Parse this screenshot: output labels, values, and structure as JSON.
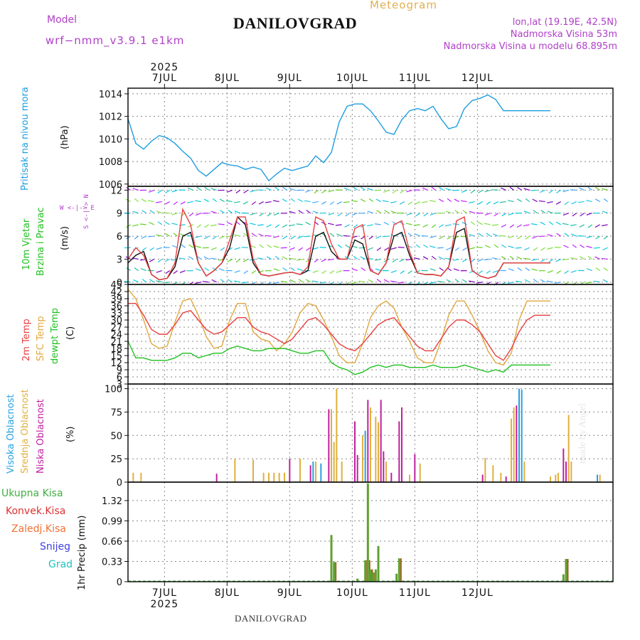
{
  "header": {
    "title": "DANILOVGRAD",
    "subtitle": "Meteogram",
    "model_label": "Model",
    "model_name": "wrf−nmm_v3.9.1  e1km",
    "info_lonlat": "lon,lat (19.19E, 42.5N)",
    "info_elev": "Nadmorska Visina 53m",
    "info_model_elev": "Nadmorska Visina u modelu 68.895m"
  },
  "footer": "DANILOVGRAD",
  "watermark": "made by Angel",
  "time_axis": {
    "year": "2025",
    "day_labels": [
      "7JUL",
      "8JUL",
      "9JUL",
      "10JUL",
      "11JUL",
      "12JUL"
    ],
    "start_hour_offset": 0
  },
  "colors": {
    "pressure": "#1e9ee0",
    "temp_2m": "#e84040",
    "temp_sfc": "#e0a840",
    "dewpoint": "#20c020",
    "high_cloud": "#28a0e0",
    "mid_cloud": "#e0b040",
    "low_cloud": "#c020a0",
    "total_precip": "#40b040",
    "conv_precip": "#e03030",
    "frozen_precip": "#f07030",
    "snow": "#4040e0",
    "graupel": "#20c0c0",
    "wind_dir_label": "#b040c8"
  },
  "panels": {
    "pressure": {
      "ylabel": "Pritisak na nivou mora",
      "unit": "(hPa)"
    },
    "wind": {
      "ylabel1": "10m Vjetar",
      "ylabel2": "Brzina i Pravac",
      "unit": "(m/s)",
      "compass": "W <-|-> E",
      "compass2": "S <-|-> N"
    },
    "temp": {
      "ylabel1": "2m Temp",
      "ylabel2": "SFC Temp",
      "ylabel3": "dewpt Temp",
      "unit": "(C)"
    },
    "cloud": {
      "ylabel1": "Visoka Oblacnost",
      "ylabel2": "Srednja Oblacnost",
      "ylabel3": "Niska Oblacnost",
      "unit": "(%)"
    },
    "precip": {
      "legend": [
        "Ukupna Kisa",
        "Konvek.Kisa",
        "Zaledj.Kisa",
        "Snijeg",
        "Grad"
      ],
      "unit": "1hr Precip (mm)"
    }
  },
  "chart_data": [
    {
      "type": "line",
      "title": "",
      "ylabel": "Pritisak na nivou mora (hPa)",
      "ylim": [
        1005.8,
        1014.5
      ],
      "yticks": [
        1006,
        1008,
        1010,
        1012,
        1014
      ],
      "x_hours": [
        0,
        3,
        6,
        9,
        12,
        15,
        18,
        21,
        24,
        27,
        30,
        33,
        36,
        39,
        42,
        45,
        48,
        51,
        54,
        57,
        60,
        63,
        66,
        69,
        72,
        75,
        78,
        81,
        84,
        87,
        90,
        93,
        96,
        99,
        102,
        105,
        108,
        111,
        114,
        117,
        120,
        123,
        126,
        129,
        132,
        135,
        138,
        141,
        144,
        147,
        150,
        153,
        156,
        159,
        162
      ],
      "series": [
        {
          "name": "pressure",
          "values": [
            1011.8,
            1009.6,
            1009.1,
            1009.8,
            1010.3,
            1010.1,
            1009.6,
            1008.9,
            1008.3,
            1007.2,
            1006.7,
            1007.3,
            1007.9,
            1007.7,
            1007.6,
            1007.3,
            1007.5,
            1007.3,
            1006.3,
            1006.9,
            1007.4,
            1007.2,
            1007.4,
            1007.6,
            1008.5,
            1007.9,
            1008.8,
            1011.5,
            1012.9,
            1013.1,
            1013.1,
            1012.5,
            1011.6,
            1010.6,
            1010.4,
            1011.7,
            1012.5,
            1012.7,
            1012.5,
            1012.9,
            1011.8,
            1010.9,
            1011.1,
            1012.7,
            1013.4,
            1013.6,
            1013.9,
            1013.5,
            1012.5,
            1012.5,
            1012.5,
            1012.5,
            1012.5,
            1012.5,
            1012.5
          ]
        }
      ]
    },
    {
      "type": "line",
      "title": "",
      "ylabel": "10m Vjetar Brzina i Pravac (m/s)",
      "ylim": [
        -0.3,
        12.5
      ],
      "yticks": [
        0,
        3,
        6,
        9,
        12
      ],
      "x_hours": [
        0,
        3,
        6,
        9,
        12,
        15,
        18,
        21,
        24,
        27,
        30,
        33,
        36,
        39,
        42,
        45,
        48,
        51,
        54,
        57,
        60,
        63,
        66,
        69,
        72,
        75,
        78,
        81,
        84,
        87,
        90,
        93,
        96,
        99,
        102,
        105,
        108,
        111,
        114,
        117,
        120,
        123,
        126,
        129,
        132,
        135,
        138,
        141,
        144,
        147,
        150,
        153,
        156,
        159,
        162
      ],
      "series": [
        {
          "name": "speed",
          "values": [
            2.5,
            3.5,
            4.0,
            1.0,
            0.3,
            0.5,
            2.0,
            6.0,
            6.5,
            2.5,
            0.8,
            1.5,
            2.5,
            4.5,
            8.5,
            7.5,
            2.5,
            1.0,
            0.8,
            1.0,
            1.2,
            1.3,
            1.0,
            1.5,
            6.0,
            6.5,
            4.0,
            3.0,
            3.0,
            5.5,
            5.0,
            1.5,
            1.0,
            2.5,
            6.0,
            6.5,
            3.5,
            1.2,
            1.0,
            1.0,
            0.8,
            2.0,
            6.5,
            7.0,
            1.5,
            0.8,
            0.5,
            0.8,
            2.5,
            2.5,
            2.5,
            2.5,
            2.5,
            2.5,
            2.5
          ]
        },
        {
          "name": "gust",
          "values": [
            3.0,
            4.5,
            3.5,
            1.0,
            0.3,
            0.5,
            2.5,
            9.5,
            7.5,
            2.5,
            0.8,
            1.5,
            2.5,
            5.5,
            8.5,
            8.5,
            3.0,
            1.0,
            0.8,
            1.0,
            1.2,
            1.3,
            1.0,
            2.0,
            8.5,
            8.0,
            5.0,
            3.0,
            3.0,
            7.0,
            7.5,
            1.5,
            1.0,
            2.5,
            7.5,
            8.0,
            4.0,
            1.2,
            1.0,
            1.0,
            0.8,
            2.0,
            8.0,
            8.5,
            1.5,
            0.8,
            0.5,
            0.8,
            2.5,
            2.5,
            2.5,
            2.5,
            2.5,
            2.5,
            2.5
          ]
        }
      ]
    },
    {
      "type": "line",
      "title": "",
      "ylabel": "2m Temp / SFC Temp / dewpt Temp (C)",
      "ylim": [
        3,
        45
      ],
      "yticks": [
        3,
        6,
        9,
        12,
        15,
        18,
        21,
        24,
        27,
        30,
        33,
        36,
        39,
        42,
        45
      ],
      "x_hours": [
        0,
        3,
        6,
        9,
        12,
        15,
        18,
        21,
        24,
        27,
        30,
        33,
        36,
        39,
        42,
        45,
        48,
        51,
        54,
        57,
        60,
        63,
        66,
        69,
        72,
        75,
        78,
        81,
        84,
        87,
        90,
        93,
        96,
        99,
        102,
        105,
        108,
        111,
        114,
        117,
        120,
        123,
        126,
        129,
        132,
        135,
        138,
        141,
        144,
        147,
        150,
        153,
        156,
        159,
        162
      ],
      "series": [
        {
          "name": "2m Temp",
          "values": [
            37,
            37,
            32,
            26,
            24,
            24,
            28,
            33,
            34,
            30,
            26,
            24,
            25,
            28,
            31,
            31,
            27,
            25,
            24,
            22,
            20,
            22,
            26,
            30,
            31,
            28,
            24,
            20,
            18,
            17,
            20,
            24,
            28,
            30,
            31,
            27,
            23,
            19,
            17,
            17,
            22,
            27,
            30,
            30,
            28,
            25,
            20,
            15,
            13,
            18,
            25,
            30,
            32,
            32,
            32
          ]
        },
        {
          "name": "SFC Temp",
          "values": [
            43,
            39,
            30,
            20,
            18,
            19,
            29,
            38,
            39,
            32,
            23,
            18,
            19,
            30,
            37,
            37,
            25,
            22,
            21,
            17,
            20,
            25,
            33,
            37,
            36,
            30,
            23,
            15,
            12,
            12,
            20,
            31,
            36,
            38,
            35,
            27,
            21,
            14,
            12,
            12,
            21,
            32,
            38,
            38,
            32,
            25,
            17,
            12,
            11,
            16,
            30,
            38,
            38,
            38,
            38
          ]
        },
        {
          "name": "dewpt Temp",
          "values": [
            21,
            14,
            14,
            13,
            13,
            13,
            14,
            16,
            16,
            14,
            15,
            16,
            16,
            18,
            19,
            18,
            17,
            17,
            18,
            18,
            18,
            17,
            16,
            16,
            17,
            17,
            12,
            10,
            9,
            7,
            8,
            10,
            11,
            10,
            11,
            11,
            10,
            10,
            10,
            11,
            10,
            10,
            10,
            11,
            10,
            9,
            8,
            9,
            8,
            11,
            11,
            11,
            11,
            11,
            11
          ]
        }
      ]
    },
    {
      "type": "bar",
      "title": "",
      "ylabel": "Visoka / Srednja / Niska Oblacnost (%)",
      "ylim": [
        0,
        105
      ],
      "yticks": [
        0,
        25,
        50,
        75,
        100
      ],
      "bars": [
        {
          "h": 2,
          "s": "mid",
          "v": 10
        },
        {
          "h": 5,
          "s": "mid",
          "v": 10
        },
        {
          "h": 34,
          "s": "low",
          "v": 9
        },
        {
          "h": 41,
          "s": "mid",
          "v": 25
        },
        {
          "h": 48,
          "s": "mid",
          "v": 24
        },
        {
          "h": 52,
          "s": "mid",
          "v": 10
        },
        {
          "h": 54,
          "s": "mid",
          "v": 10
        },
        {
          "h": 56,
          "s": "mid",
          "v": 10
        },
        {
          "h": 58,
          "s": "mid",
          "v": 10
        },
        {
          "h": 60,
          "s": "mid",
          "v": 10
        },
        {
          "h": 62,
          "s": "low",
          "v": 25
        },
        {
          "h": 66,
          "s": "mid",
          "v": 25
        },
        {
          "h": 70,
          "s": "low",
          "v": 18
        },
        {
          "h": 71,
          "s": "high",
          "v": 22
        },
        {
          "h": 72,
          "s": "mid",
          "v": 22
        },
        {
          "h": 74,
          "s": "high",
          "v": 20
        },
        {
          "h": 77,
          "s": "low",
          "v": 78
        },
        {
          "h": 78,
          "s": "mid",
          "v": 78
        },
        {
          "h": 79,
          "s": "mid",
          "v": 43
        },
        {
          "h": 80,
          "s": "mid",
          "v": 100
        },
        {
          "h": 82,
          "s": "mid",
          "v": 22
        },
        {
          "h": 87,
          "s": "low",
          "v": 65
        },
        {
          "h": 88,
          "s": "low",
          "v": 29
        },
        {
          "h": 90,
          "s": "mid",
          "v": 50
        },
        {
          "h": 91,
          "s": "high",
          "v": 55
        },
        {
          "h": 92,
          "s": "low",
          "v": 88
        },
        {
          "h": 93,
          "s": "mid",
          "v": 80
        },
        {
          "h": 95,
          "s": "mid",
          "v": 70
        },
        {
          "h": 96,
          "s": "mid",
          "v": 64
        },
        {
          "h": 97,
          "s": "low",
          "v": 88
        },
        {
          "h": 98,
          "s": "low",
          "v": 33
        },
        {
          "h": 99,
          "s": "mid",
          "v": 22
        },
        {
          "h": 101,
          "s": "low",
          "v": 10
        },
        {
          "h": 104,
          "s": "low",
          "v": 65
        },
        {
          "h": 105,
          "s": "low",
          "v": 80
        },
        {
          "h": 108,
          "s": "mid",
          "v": 8
        },
        {
          "h": 110,
          "s": "low",
          "v": 30
        },
        {
          "h": 112,
          "s": "mid",
          "v": 20
        },
        {
          "h": 136,
          "s": "low",
          "v": 8
        },
        {
          "h": 137,
          "s": "mid",
          "v": 26
        },
        {
          "h": 140,
          "s": "mid",
          "v": 18
        },
        {
          "h": 143,
          "s": "mid",
          "v": 10
        },
        {
          "h": 145,
          "s": "low",
          "v": 6
        },
        {
          "h": 147,
          "s": "mid",
          "v": 68
        },
        {
          "h": 148,
          "s": "mid",
          "v": 80
        },
        {
          "h": 149,
          "s": "low",
          "v": 82
        },
        {
          "h": 150,
          "s": "high",
          "v": 100
        },
        {
          "h": 151,
          "s": "high",
          "v": 99
        },
        {
          "h": 152,
          "s": "mid",
          "v": 22
        },
        {
          "h": 162,
          "s": "mid",
          "v": 6
        },
        {
          "h": 164,
          "s": "mid",
          "v": 8
        },
        {
          "h": 165,
          "s": "mid",
          "v": 10
        },
        {
          "h": 167,
          "s": "low",
          "v": 36
        },
        {
          "h": 168,
          "s": "low",
          "v": 22
        },
        {
          "h": 169,
          "s": "mid",
          "v": 72
        },
        {
          "h": 170,
          "s": "mid",
          "v": 22
        },
        {
          "h": 180,
          "s": "high",
          "v": 8
        },
        {
          "h": 181,
          "s": "mid",
          "v": 8
        }
      ]
    },
    {
      "type": "bar",
      "title": "",
      "ylabel": "1hr Precip (mm)",
      "ylim": [
        0,
        1.62
      ],
      "yticks": [
        0,
        0.33,
        0.66,
        0.99,
        1.32
      ],
      "ytick_labels": [
        "0",
        "0.33",
        "0.66",
        "0.99",
        "1.32"
      ],
      "bars": [
        {
          "h": 78,
          "total": 0.76,
          "conv": 0.0
        },
        {
          "h": 79,
          "total": 0.32,
          "conv": 0.32
        },
        {
          "h": 88,
          "total": 0.05,
          "conv": 0.0
        },
        {
          "h": 91,
          "total": 0.35,
          "conv": 0.35
        },
        {
          "h": 92,
          "total": 1.6,
          "conv": 0.35
        },
        {
          "h": 93,
          "total": 0.2,
          "conv": 0.2
        },
        {
          "h": 94,
          "total": 0.15,
          "conv": 0.15
        },
        {
          "h": 95,
          "total": 0.2,
          "conv": 0.0
        },
        {
          "h": 96,
          "total": 0.58,
          "conv": 0.0
        },
        {
          "h": 103,
          "total": 0.13,
          "conv": 0.0
        },
        {
          "h": 104,
          "total": 0.38,
          "conv": 0.38
        },
        {
          "h": 167,
          "total": 0.12,
          "conv": 0.0
        },
        {
          "h": 168,
          "total": 0.37,
          "conv": 0.37
        }
      ]
    }
  ]
}
